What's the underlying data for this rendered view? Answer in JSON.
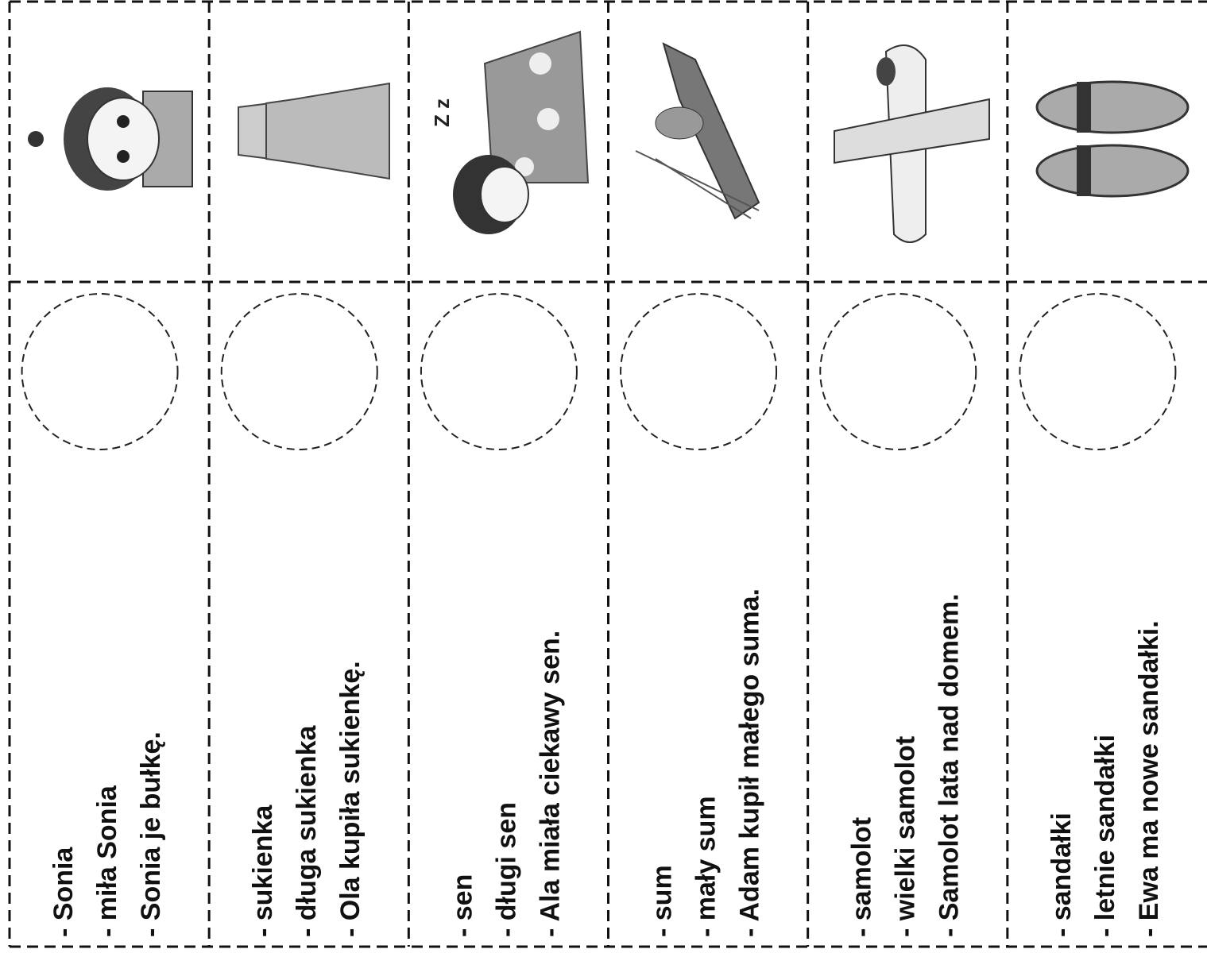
{
  "strips": [
    {
      "lines": [
        "- Sonia",
        "- miła Sonia",
        "- Sonia je bułkę."
      ]
    },
    {
      "lines": [
        "- sukienka",
        "- długa sukienka",
        "- Ola kupiła sukienkę."
      ]
    },
    {
      "lines": [
        "- sen",
        "- długi sen",
        "- Ala miała ciekawy sen."
      ]
    },
    {
      "lines": [
        "- sum",
        "- mały sum",
        "- Adam kupił małego suma."
      ]
    },
    {
      "lines": [
        "- samolot",
        "- wielki samolot",
        "- Samolot lata nad domem."
      ]
    },
    {
      "lines": [
        "- sandałki",
        "- letnie sandałki",
        "- Ewa ma nowe sandałki."
      ]
    }
  ]
}
